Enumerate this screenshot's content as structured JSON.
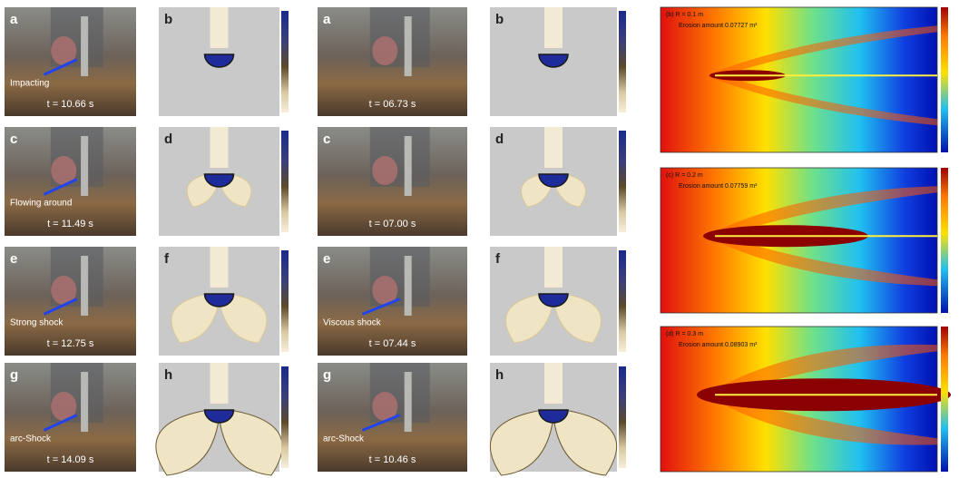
{
  "left_panels": [
    {
      "photo_label": "a",
      "sim_label": "b",
      "annotation": "Impacting",
      "time": "t = 10.66 s"
    },
    {
      "photo_label": "c",
      "sim_label": "d",
      "annotation": "Flowing around",
      "time": "t = 11.49 s"
    },
    {
      "photo_label": "e",
      "sim_label": "f",
      "annotation": "Strong shock",
      "time": "t = 12.75 s"
    },
    {
      "photo_label": "g",
      "sim_label": "h",
      "annotation": "arc-Shock",
      "time": "t = 14.09 s"
    }
  ],
  "middle_panels": [
    {
      "photo_label": "a",
      "sim_label": "b",
      "time": "t = 06.73 s"
    },
    {
      "photo_label": "c",
      "sim_label": "d",
      "time": "t = 07.00 s"
    },
    {
      "photo_label": "e",
      "sim_label": "f",
      "annotation": "Viscous shock",
      "time": "t = 07.44 s"
    },
    {
      "photo_label": "g",
      "sim_label": "h",
      "annotation": "arc-Shock",
      "time": "t = 10.46 s"
    }
  ],
  "right_panels": [
    {
      "title": "(b) R = 0.1 m",
      "note": "Erosion amount 0.07727 m³"
    },
    {
      "title": "(c) R = 0.2 m",
      "note": "Erosion amount 0.07759 m³"
    },
    {
      "title": "(d) R = 0.3 m",
      "note": "Erosion amount 0.08903 m³"
    }
  ]
}
